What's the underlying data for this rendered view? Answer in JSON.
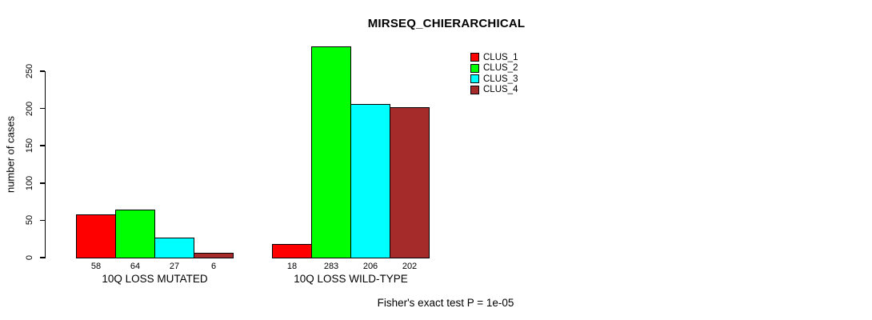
{
  "chart_data": {
    "type": "bar",
    "title": "MIRSEQ_CHIERARCHICAL",
    "ylabel": "number of cases",
    "xlabel": "",
    "ylim": [
      0,
      250
    ],
    "yticks": [
      0,
      50,
      100,
      150,
      200,
      250
    ],
    "categories": [
      "10Q LOSS MUTATED",
      "10Q LOSS WILD-TYPE"
    ],
    "series": [
      {
        "name": "CLUS_1",
        "color": "#ff0000",
        "values": [
          58,
          18
        ]
      },
      {
        "name": "CLUS_2",
        "color": "#00ff00",
        "values": [
          64,
          283
        ]
      },
      {
        "name": "CLUS_3",
        "color": "#00ffff",
        "values": [
          27,
          206
        ]
      },
      {
        "name": "CLUS_4",
        "color": "#a52a2a",
        "values": [
          6,
          202
        ]
      }
    ],
    "bar_labels_shown": true,
    "legend_position": "top-right",
    "grid": false,
    "annotation": "Fisher's exact test P = 1e-05"
  },
  "colors": {
    "background": "#ffffff",
    "axis": "#000000",
    "text": "#000000"
  }
}
